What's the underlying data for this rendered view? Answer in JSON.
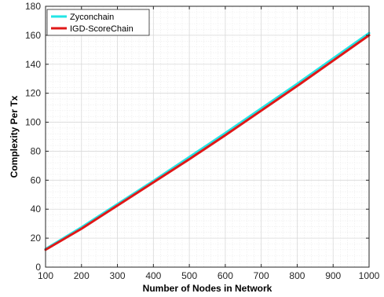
{
  "chart_data": {
    "type": "line",
    "title": "",
    "xlabel": "Number of Nodes in Network",
    "ylabel": "Complexity Per Tx",
    "xlim": [
      100,
      1000
    ],
    "ylim": [
      0,
      180
    ],
    "xticks": [
      100,
      200,
      300,
      400,
      500,
      600,
      700,
      800,
      900,
      1000
    ],
    "yticks": [
      0,
      20,
      40,
      60,
      80,
      100,
      120,
      140,
      160,
      180
    ],
    "grid": true,
    "minor_grid": true,
    "legend_position": "top-left",
    "x": [
      100,
      200,
      300,
      400,
      500,
      600,
      700,
      800,
      900,
      1000
    ],
    "series": [
      {
        "name": "Zyconchain",
        "color": "#22e5e5",
        "values": [
          12.5,
          27.5,
          43.5,
          59.5,
          76,
          92.5,
          109.5,
          126.5,
          144,
          161.5
        ]
      },
      {
        "name": "IGD-ScoreChain",
        "color": "#e01818",
        "values": [
          12,
          26.5,
          42.5,
          58.5,
          74.5,
          91,
          108,
          125,
          142.5,
          160
        ]
      }
    ]
  }
}
